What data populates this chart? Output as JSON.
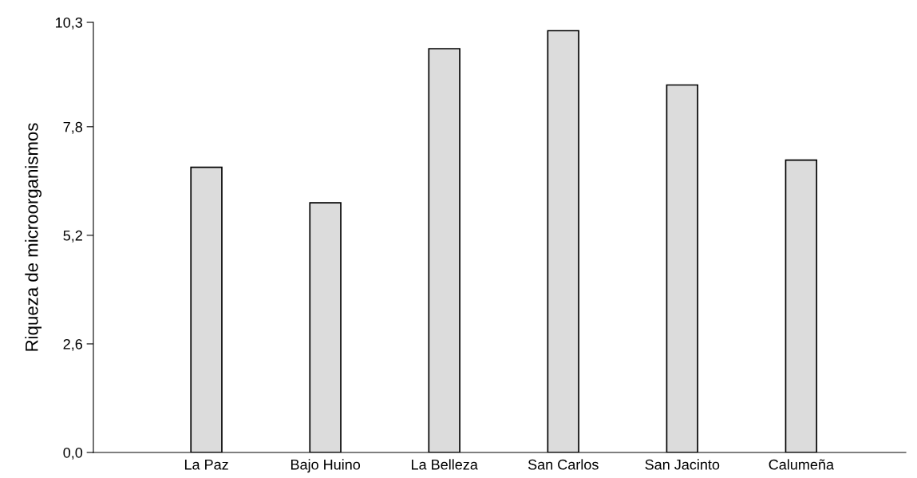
{
  "chart_data": {
    "type": "bar",
    "ylabel": "Riqueza de microorganismos",
    "categories": [
      "La Paz",
      "Bajo Huino",
      "La Belleza",
      "San Carlos",
      "San Jacinto",
      "Calumeña"
    ],
    "values": [
      6.83,
      5.98,
      9.67,
      10.1,
      8.8,
      7.0
    ],
    "color": "#dcdcdc",
    "ylim": [
      0,
      10.3
    ],
    "yticks": [
      {
        "value": 0,
        "label": "0,0"
      },
      {
        "value": 2.6,
        "label": "2,6"
      },
      {
        "value": 5.2,
        "label": "5,2"
      },
      {
        "value": 7.8,
        "label": "7,8"
      },
      {
        "value": 10.3,
        "label": "10,3"
      }
    ],
    "grid": false
  }
}
